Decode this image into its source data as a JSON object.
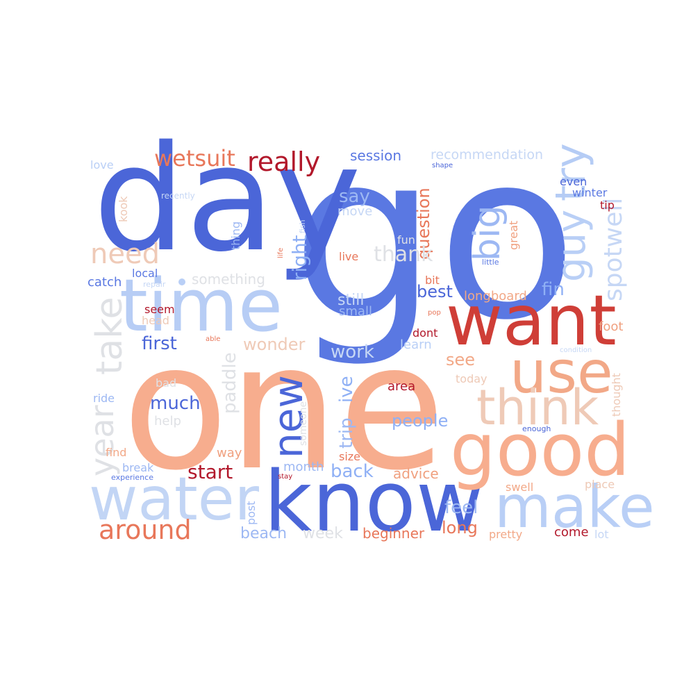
{
  "colors": {
    "blue_deep": "#4b66d8",
    "blue": "#5a78e2",
    "blue_light": "#8fb0f5",
    "blue_pale": "#b9cff6",
    "grey": "#dfe1e5",
    "peach_pale": "#eec9b6",
    "peach": "#f2a887",
    "salmon": "#f0a07f",
    "orange": "#e8775a",
    "red": "#d1473d",
    "red_deep": "#b2182b"
  },
  "words": [
    "go",
    "day",
    "one",
    "time",
    "want",
    "know",
    "water",
    "use",
    "good",
    "think",
    "make",
    "try",
    "guy",
    "big",
    "new",
    "take",
    "year",
    "spotwell",
    "need",
    "really",
    "wetsuit",
    "around",
    "start",
    "first",
    "much",
    "wonder",
    "right",
    "paddle",
    "trip",
    "ive",
    "session",
    "recommendation",
    "say",
    "move",
    "question",
    "thank",
    "fun",
    "live",
    "best",
    "fin",
    "longboard",
    "still",
    "small",
    "work",
    "see",
    "people",
    "advice",
    "back",
    "feel",
    "long",
    "beginner",
    "come",
    "beach",
    "week",
    "post",
    "month",
    "size",
    "way",
    "break",
    "find",
    "ride",
    "help",
    "bad",
    "catch",
    "local",
    "something",
    "love",
    "recently",
    "fish",
    "thing",
    "kook",
    "life",
    "repair",
    "seem",
    "head",
    "able",
    "pop",
    "bit",
    "dont",
    "learn",
    "area",
    "today",
    "thought",
    "foot",
    "condition",
    "enough",
    "someone",
    "experience",
    "stay",
    "swell",
    "place",
    "pretty",
    "lot",
    "even",
    "winter",
    "tip",
    "great",
    "little",
    "shape"
  ]
}
